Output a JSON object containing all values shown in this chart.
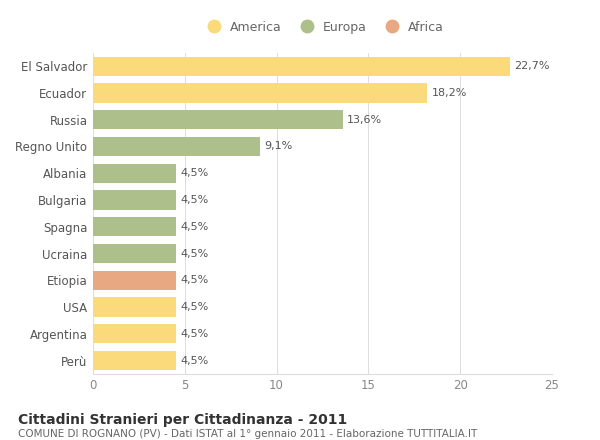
{
  "categories": [
    "El Salvador",
    "Ecuador",
    "Russia",
    "Regno Unito",
    "Albania",
    "Bulgaria",
    "Spagna",
    "Ucraina",
    "Etiopia",
    "USA",
    "Argentina",
    "Perù"
  ],
  "values": [
    22.7,
    18.2,
    13.6,
    9.1,
    4.5,
    4.5,
    4.5,
    4.5,
    4.5,
    4.5,
    4.5,
    4.5
  ],
  "colors": [
    "#FADA7A",
    "#FADA7A",
    "#ADBF8A",
    "#ADBF8A",
    "#ADBF8A",
    "#ADBF8A",
    "#ADBF8A",
    "#ADBF8A",
    "#E8A882",
    "#FADA7A",
    "#FADA7A",
    "#FADA7A"
  ],
  "label_texts": [
    "22,7%",
    "18,2%",
    "13,6%",
    "9,1%",
    "4,5%",
    "4,5%",
    "4,5%",
    "4,5%",
    "4,5%",
    "4,5%",
    "4,5%",
    "4,5%"
  ],
  "legend_labels": [
    "America",
    "Europa",
    "Africa"
  ],
  "legend_colors": [
    "#FADA7A",
    "#ADBF8A",
    "#E8A882"
  ],
  "xlim": [
    0,
    25
  ],
  "xticks": [
    0,
    5,
    10,
    15,
    20,
    25
  ],
  "title": "Cittadini Stranieri per Cittadinanza - 2011",
  "subtitle": "COMUNE DI ROGNANO (PV) - Dati ISTAT al 1° gennaio 2011 - Elaborazione TUTTITALIA.IT",
  "background_color": "#FFFFFF",
  "grid_color": "#DDDDDD",
  "bar_height": 0.72,
  "figsize": [
    6.0,
    4.4
  ],
  "dpi": 100
}
